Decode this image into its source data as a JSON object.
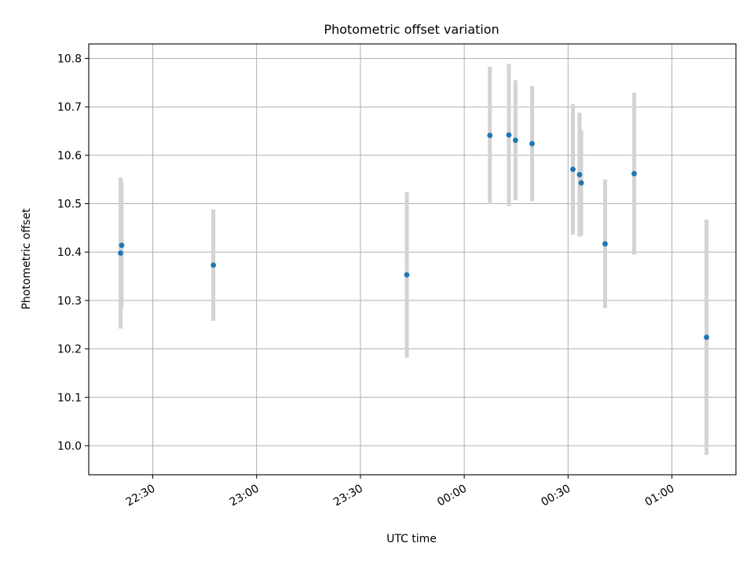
{
  "chart_data": {
    "type": "scatter",
    "title": "Photometric offset variation",
    "xlabel": "UTC time",
    "ylabel": "Photometric offset",
    "x_unit": "UTC HH:MM",
    "xlim": [
      "22:11.5",
      "01:18.5"
    ],
    "ylim": [
      9.94,
      10.83
    ],
    "xticks": [
      "22:30",
      "23:00",
      "23:30",
      "00:00",
      "00:30",
      "01:00"
    ],
    "yticks": [
      "10.0",
      "10.1",
      "10.2",
      "10.3",
      "10.4",
      "10.5",
      "10.6",
      "10.7",
      "10.8"
    ],
    "grid": true,
    "colors": {
      "marker": "#1f77b4",
      "errorbar": "#d3d3d3",
      "grid": "#b0b0b0"
    },
    "points": [
      {
        "t": "22:20.7",
        "y": 10.398,
        "err": 0.156
      },
      {
        "t": "22:21.0",
        "y": 10.414,
        "err": 0.131
      },
      {
        "t": "22:47.5",
        "y": 10.373,
        "err": 0.115
      },
      {
        "t": "23:43.4",
        "y": 10.353,
        "err": 0.171
      },
      {
        "t": "00:07.4",
        "y": 10.641,
        "err": 0.142
      },
      {
        "t": "00:12.9",
        "y": 10.642,
        "err": 0.147
      },
      {
        "t": "00:14.8",
        "y": 10.631,
        "err": 0.124
      },
      {
        "t": "00:19.6",
        "y": 10.624,
        "err": 0.119
      },
      {
        "t": "00:31.4",
        "y": 10.571,
        "err": 0.135
      },
      {
        "t": "00:33.3",
        "y": 10.56,
        "err": 0.128
      },
      {
        "t": "00:33.8",
        "y": 10.543,
        "err": 0.109
      },
      {
        "t": "00:40.7",
        "y": 10.417,
        "err": 0.133
      },
      {
        "t": "00:49.1",
        "y": 10.562,
        "err": 0.167
      },
      {
        "t": "01:10.0",
        "y": 10.224,
        "err": 0.243
      }
    ]
  }
}
